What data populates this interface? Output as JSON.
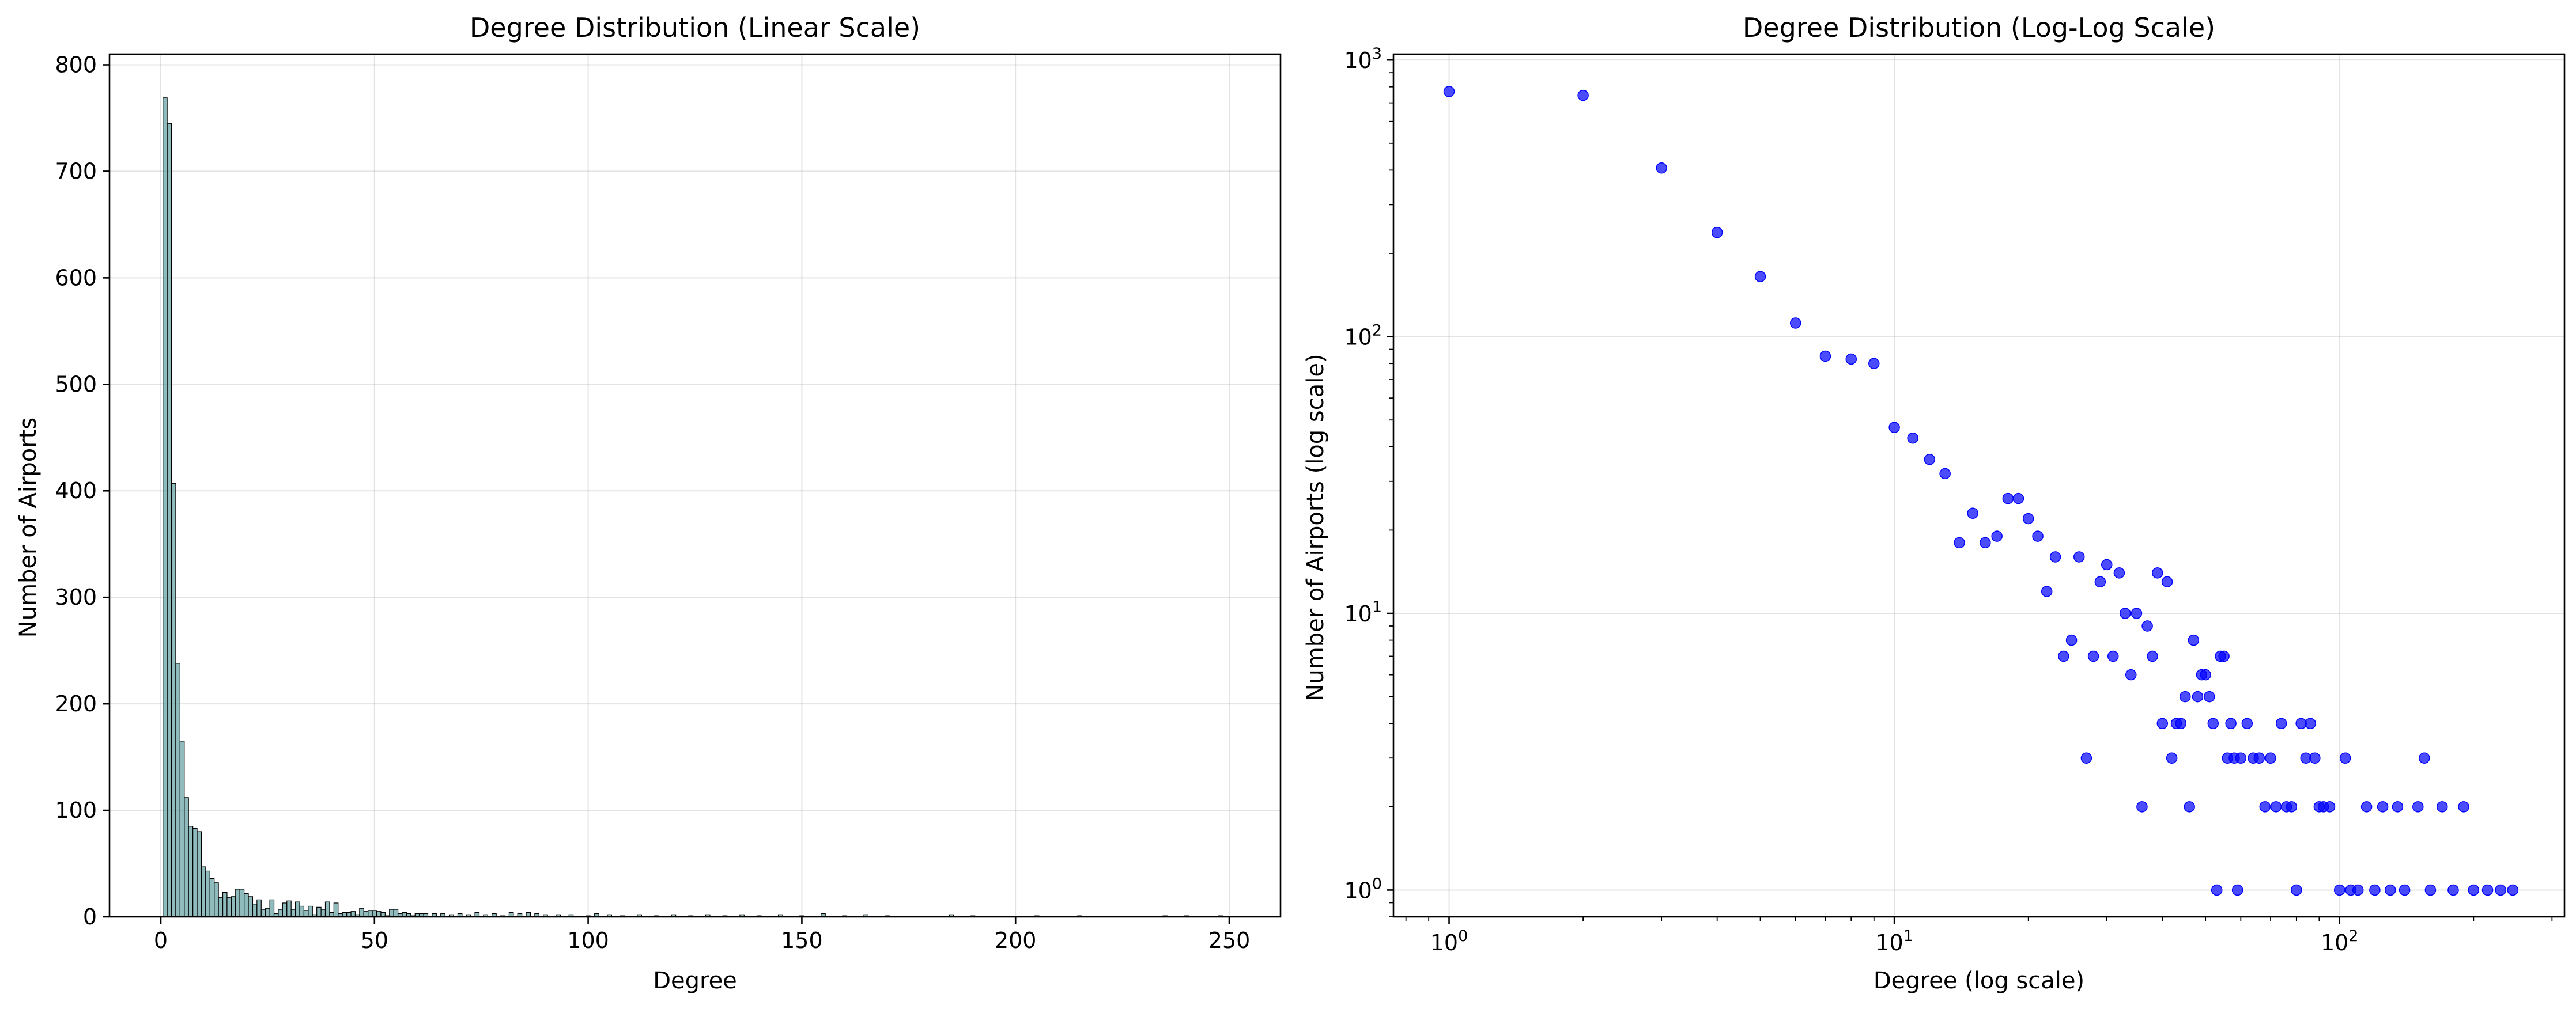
{
  "chart_data": [
    {
      "type": "bar",
      "title": "Degree Distribution (Linear Scale)",
      "xlabel": "Degree",
      "ylabel": "Number of Airports",
      "xlim": [
        -12,
        262
      ],
      "ylim": [
        0,
        810
      ],
      "xticks": [
        0,
        50,
        100,
        150,
        200,
        250
      ],
      "yticks": [
        0,
        100,
        200,
        300,
        400,
        500,
        600,
        700,
        800
      ],
      "grid": true,
      "bar_color": "#5f9ea0",
      "bin_width": 1,
      "bins": [
        [
          1,
          769
        ],
        [
          2,
          745
        ],
        [
          3,
          407
        ],
        [
          4,
          238
        ],
        [
          5,
          165
        ],
        [
          6,
          112
        ],
        [
          7,
          85
        ],
        [
          8,
          83
        ],
        [
          9,
          80
        ],
        [
          10,
          47
        ],
        [
          11,
          43
        ],
        [
          12,
          36
        ],
        [
          13,
          32
        ],
        [
          14,
          18
        ],
        [
          15,
          23
        ],
        [
          16,
          18
        ],
        [
          17,
          19
        ],
        [
          18,
          26
        ],
        [
          19,
          26
        ],
        [
          20,
          22
        ],
        [
          21,
          19
        ],
        [
          22,
          12
        ],
        [
          23,
          16
        ],
        [
          24,
          7
        ],
        [
          25,
          8
        ],
        [
          26,
          16
        ],
        [
          27,
          3
        ],
        [
          28,
          7
        ],
        [
          29,
          13
        ],
        [
          30,
          15
        ],
        [
          31,
          7
        ],
        [
          32,
          14
        ],
        [
          33,
          10
        ],
        [
          34,
          6
        ],
        [
          35,
          10
        ],
        [
          36,
          2
        ],
        [
          37,
          9
        ],
        [
          38,
          7
        ],
        [
          39,
          14
        ],
        [
          40,
          4
        ],
        [
          41,
          13
        ],
        [
          42,
          3
        ],
        [
          43,
          4
        ],
        [
          44,
          4
        ],
        [
          45,
          5
        ],
        [
          46,
          2
        ],
        [
          47,
          8
        ],
        [
          48,
          5
        ],
        [
          49,
          6
        ],
        [
          50,
          6
        ],
        [
          51,
          5
        ],
        [
          52,
          4
        ],
        [
          53,
          1
        ],
        [
          54,
          7
        ],
        [
          55,
          7
        ],
        [
          56,
          3
        ],
        [
          57,
          4
        ],
        [
          58,
          3
        ],
        [
          59,
          1
        ],
        [
          60,
          3
        ],
        [
          61,
          3
        ],
        [
          62,
          3
        ],
        [
          64,
          3
        ],
        [
          66,
          3
        ],
        [
          68,
          2
        ],
        [
          70,
          3
        ],
        [
          72,
          2
        ],
        [
          74,
          4
        ],
        [
          76,
          2
        ],
        [
          78,
          3
        ],
        [
          80,
          1
        ],
        [
          82,
          4
        ],
        [
          84,
          3
        ],
        [
          86,
          4
        ],
        [
          88,
          3
        ],
        [
          90,
          2
        ],
        [
          93,
          2
        ],
        [
          96,
          2
        ],
        [
          100,
          1
        ],
        [
          102,
          3
        ],
        [
          105,
          2
        ],
        [
          108,
          1
        ],
        [
          112,
          2
        ],
        [
          116,
          1
        ],
        [
          120,
          2
        ],
        [
          124,
          1
        ],
        [
          128,
          2
        ],
        [
          132,
          1
        ],
        [
          136,
          2
        ],
        [
          140,
          1
        ],
        [
          145,
          2
        ],
        [
          150,
          1
        ],
        [
          155,
          3
        ],
        [
          160,
          1
        ],
        [
          165,
          2
        ],
        [
          170,
          1
        ],
        [
          185,
          2
        ],
        [
          190,
          1
        ],
        [
          205,
          1
        ],
        [
          215,
          1
        ],
        [
          235,
          1
        ],
        [
          240,
          1
        ],
        [
          248,
          1
        ]
      ]
    },
    {
      "type": "scatter",
      "title": "Degree Distribution (Log-Log Scale)",
      "xlabel": "Degree (log scale)",
      "ylabel": "Number of Airports (log scale)",
      "xscale": "log",
      "yscale": "log",
      "xlim": [
        0.75,
        320
      ],
      "ylim": [
        0.8,
        1050
      ],
      "xticks": [
        {
          "base": "10",
          "exp": "0"
        },
        {
          "base": "10",
          "exp": "1"
        },
        {
          "base": "10",
          "exp": "2"
        }
      ],
      "yticks": [
        {
          "base": "10",
          "exp": "0"
        },
        {
          "base": "10",
          "exp": "1"
        },
        {
          "base": "10",
          "exp": "2"
        },
        {
          "base": "10",
          "exp": "3"
        }
      ],
      "grid": true,
      "marker_color": "#0000ff",
      "points": [
        [
          1,
          769
        ],
        [
          2,
          745
        ],
        [
          3,
          407
        ],
        [
          4,
          238
        ],
        [
          5,
          165
        ],
        [
          6,
          112
        ],
        [
          7,
          85
        ],
        [
          8,
          83
        ],
        [
          9,
          80
        ],
        [
          10,
          47
        ],
        [
          11,
          43
        ],
        [
          12,
          36
        ],
        [
          13,
          32
        ],
        [
          14,
          18
        ],
        [
          15,
          23
        ],
        [
          16,
          18
        ],
        [
          17,
          19
        ],
        [
          18,
          26
        ],
        [
          19,
          26
        ],
        [
          20,
          22
        ],
        [
          21,
          19
        ],
        [
          22,
          12
        ],
        [
          23,
          16
        ],
        [
          24,
          7
        ],
        [
          25,
          8
        ],
        [
          26,
          16
        ],
        [
          27,
          3
        ],
        [
          28,
          7
        ],
        [
          29,
          13
        ],
        [
          30,
          15
        ],
        [
          31,
          7
        ],
        [
          32,
          14
        ],
        [
          33,
          10
        ],
        [
          34,
          6
        ],
        [
          35,
          10
        ],
        [
          36,
          2
        ],
        [
          37,
          9
        ],
        [
          38,
          7
        ],
        [
          39,
          14
        ],
        [
          40,
          4
        ],
        [
          41,
          13
        ],
        [
          42,
          3
        ],
        [
          43,
          4
        ],
        [
          44,
          4
        ],
        [
          45,
          5
        ],
        [
          46,
          2
        ],
        [
          47,
          8
        ],
        [
          48,
          5
        ],
        [
          49,
          6
        ],
        [
          50,
          6
        ],
        [
          51,
          5
        ],
        [
          52,
          4
        ],
        [
          53,
          1
        ],
        [
          54,
          7
        ],
        [
          55,
          7
        ],
        [
          56,
          3
        ],
        [
          57,
          4
        ],
        [
          58,
          3
        ],
        [
          59,
          1
        ],
        [
          60,
          3
        ],
        [
          62,
          4
        ],
        [
          64,
          3
        ],
        [
          66,
          3
        ],
        [
          68,
          2
        ],
        [
          70,
          3
        ],
        [
          72,
          2
        ],
        [
          74,
          4
        ],
        [
          76,
          2
        ],
        [
          78,
          2
        ],
        [
          80,
          1
        ],
        [
          82,
          4
        ],
        [
          84,
          3
        ],
        [
          86,
          4
        ],
        [
          88,
          3
        ],
        [
          90,
          2
        ],
        [
          92,
          2
        ],
        [
          95,
          2
        ],
        [
          100,
          1
        ],
        [
          103,
          3
        ],
        [
          106,
          1
        ],
        [
          110,
          1
        ],
        [
          115,
          2
        ],
        [
          120,
          1
        ],
        [
          125,
          2
        ],
        [
          130,
          1
        ],
        [
          135,
          2
        ],
        [
          140,
          1
        ],
        [
          150,
          2
        ],
        [
          155,
          3
        ],
        [
          160,
          1
        ],
        [
          170,
          2
        ],
        [
          180,
          1
        ],
        [
          190,
          2
        ],
        [
          200,
          1
        ],
        [
          215,
          1
        ],
        [
          230,
          1
        ],
        [
          245,
          1
        ]
      ]
    }
  ]
}
